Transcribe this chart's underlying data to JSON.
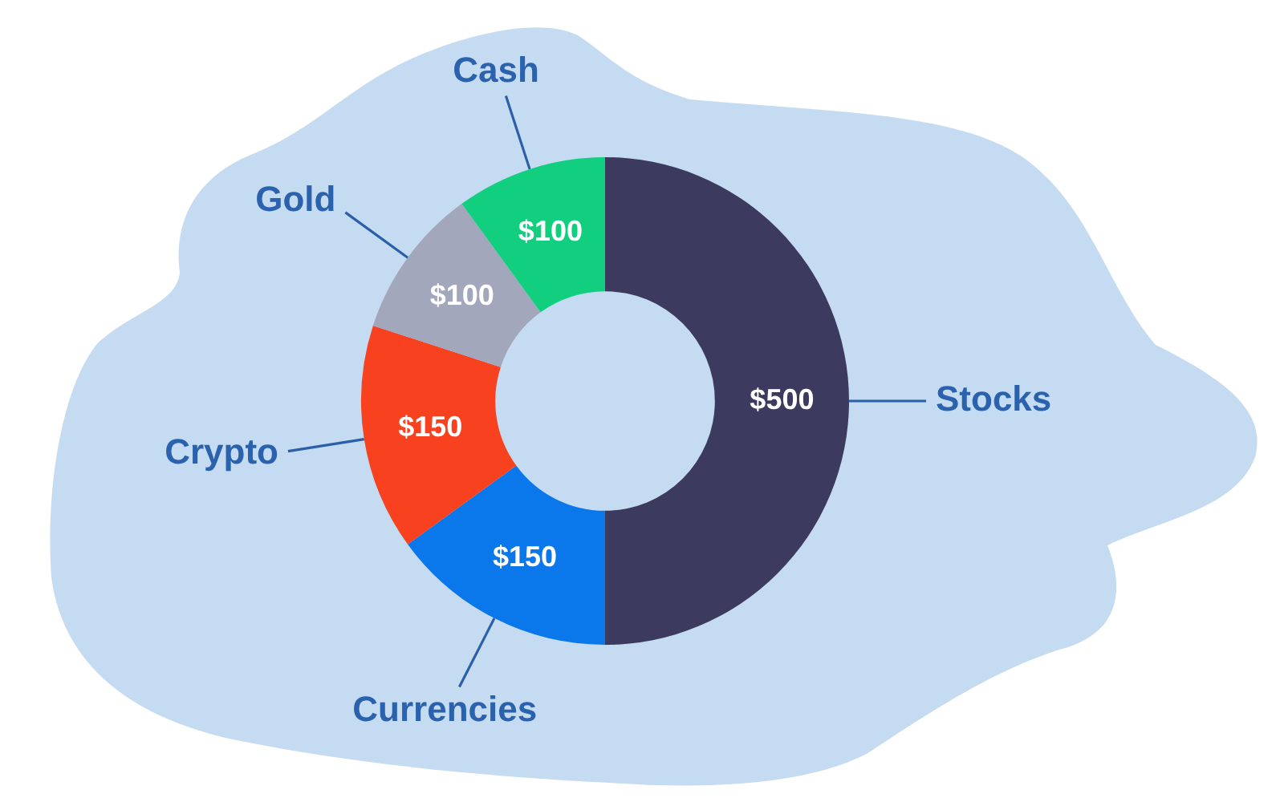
{
  "chart_data": {
    "type": "donut",
    "categories": [
      "Stocks",
      "Currencies",
      "Crypto",
      "Gold",
      "Cash"
    ],
    "values": [
      500,
      150,
      150,
      100,
      100
    ],
    "colors": [
      "#3d3a5f",
      "#0a77eb",
      "#f7411f",
      "#a3a7bc",
      "#12cf80"
    ],
    "value_labels": [
      "$500",
      "$150",
      "$150",
      "$100",
      "$100"
    ]
  }
}
